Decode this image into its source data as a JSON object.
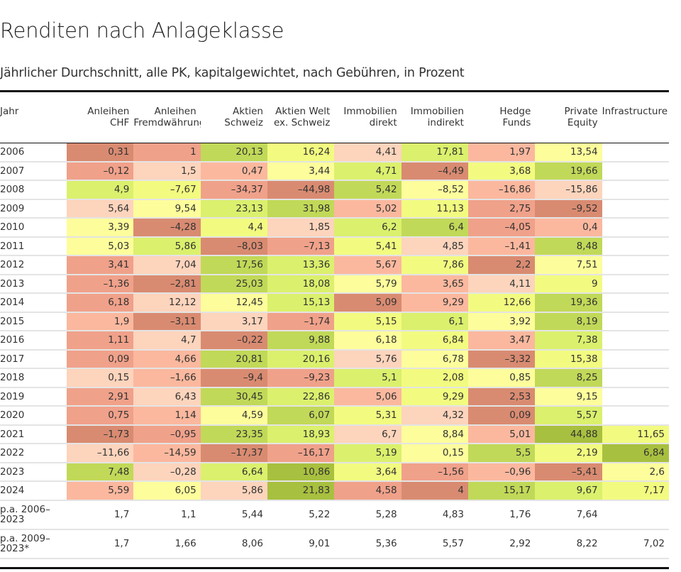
{
  "title": "Renditen nach Anlageklasse",
  "subtitle": "Jährlicher Durchschnitt, alle PK, kapitalgewichtet, nach Gebühren, in Prozent",
  "chart_data": {
    "type": "heatmap",
    "color_rule": "per row, ranked from lowest (red) to highest (green)",
    "palette": [
      "#d98b71",
      "#f0a18a",
      "#fbb89e",
      "#fdd4bc",
      "#fdfd9c",
      "#f2fb80",
      "#dbf06d",
      "#c1d958",
      "#a8c03f"
    ],
    "columns": [
      {
        "label": [
          "Jahr"
        ]
      },
      {
        "label": [
          "Anleihen",
          "CHF"
        ]
      },
      {
        "label": [
          "Anleihen",
          "Fremdwährung"
        ]
      },
      {
        "label": [
          "Aktien",
          "Schweiz"
        ]
      },
      {
        "label": [
          "Aktien Welt",
          "ex. Schweiz"
        ]
      },
      {
        "label": [
          "Immobilien",
          "direkt"
        ]
      },
      {
        "label": [
          "Immobilien",
          "indirekt"
        ]
      },
      {
        "label": [
          "Hedge",
          "Funds"
        ]
      },
      {
        "label": [
          "Private",
          "Equity"
        ]
      },
      {
        "label": [
          "Infrastructure"
        ]
      }
    ],
    "rows": [
      {
        "year": "2006",
        "values": [
          "0,31",
          "1",
          "20,13",
          "16,24",
          "4,41",
          "17,81",
          "1,97",
          "13,54",
          ""
        ]
      },
      {
        "year": "2007",
        "values": [
          "–0,12",
          "1,5",
          "0,47",
          "3,44",
          "4,71",
          "–4,49",
          "3,68",
          "19,66",
          ""
        ]
      },
      {
        "year": "2008",
        "values": [
          "4,9",
          "–7,67",
          "–34,37",
          "–44,98",
          "5,42",
          "–8,52",
          "–16,86",
          "–15,86",
          ""
        ]
      },
      {
        "year": "2009",
        "values": [
          "5,64",
          "9,54",
          "23,13",
          "31,98",
          "5,02",
          "11,13",
          "2,75",
          "–9,52",
          ""
        ]
      },
      {
        "year": "2010",
        "values": [
          "3,39",
          "–4,28",
          "4,4",
          "1,85",
          "6,2",
          "6,4",
          "–4,05",
          "0,4",
          ""
        ]
      },
      {
        "year": "2011",
        "values": [
          "5,03",
          "5,86",
          "–8,03",
          "–7,13",
          "5,41",
          "4,85",
          "–1,41",
          "8,48",
          ""
        ]
      },
      {
        "year": "2012",
        "values": [
          "3,41",
          "7,04",
          "17,56",
          "13,36",
          "5,67",
          "7,86",
          "2,2",
          "7,51",
          ""
        ]
      },
      {
        "year": "2013",
        "values": [
          "–1,36",
          "–2,81",
          "25,03",
          "18,08",
          "5,79",
          "3,65",
          "4,11",
          "9",
          ""
        ]
      },
      {
        "year": "2014",
        "values": [
          "6,18",
          "12,12",
          "12,45",
          "15,13",
          "5,09",
          "9,29",
          "12,66",
          "19,36",
          ""
        ]
      },
      {
        "year": "2015",
        "values": [
          "1,9",
          "–3,11",
          "3,17",
          "–1,74",
          "5,15",
          "6,1",
          "3,92",
          "8,19",
          ""
        ]
      },
      {
        "year": "2016",
        "values": [
          "1,11",
          "4,7",
          "–0,22",
          "9,88",
          "6,18",
          "6,84",
          "3,47",
          "7,38",
          ""
        ]
      },
      {
        "year": "2017",
        "values": [
          "0,09",
          "4,66",
          "20,81",
          "20,16",
          "5,76",
          "6,78",
          "–3,32",
          "15,38",
          ""
        ]
      },
      {
        "year": "2018",
        "values": [
          "0,15",
          "–1,66",
          "–9,4",
          "–9,23",
          "5,1",
          "2,08",
          "0,85",
          "8,25",
          ""
        ]
      },
      {
        "year": "2019",
        "values": [
          "2,91",
          "6,43",
          "30,45",
          "22,86",
          "5,06",
          "9,29",
          "2,53",
          "9,15",
          ""
        ]
      },
      {
        "year": "2020",
        "values": [
          "0,75",
          "1,14",
          "4,59",
          "6,07",
          "5,31",
          "4,32",
          "0,09",
          "5,57",
          ""
        ]
      },
      {
        "year": "2021",
        "values": [
          "–1,73",
          "–0,95",
          "23,35",
          "18,93",
          "6,7",
          "8,84",
          "5,01",
          "44,88",
          "11,65"
        ]
      },
      {
        "year": "2022",
        "values": [
          "–11,66",
          "–14,59",
          "–17,37",
          "–16,17",
          "5,19",
          "0,15",
          "5,5",
          "2,19",
          "6,84"
        ]
      },
      {
        "year": "2023",
        "values": [
          "7,48",
          "–0,28",
          "6,64",
          "10,86",
          "3,64",
          "–1,56",
          "–0,96",
          "–5,41",
          "2,6"
        ]
      },
      {
        "year": "2024",
        "values": [
          "5,59",
          "6,05",
          "5,86",
          "21,83",
          "4,58",
          "4",
          "15,17",
          "9,67",
          "7,17"
        ]
      }
    ],
    "summary_rows": [
      {
        "label": [
          "p.a. 2006–",
          "2023"
        ],
        "values": [
          "1,7",
          "1,1",
          "5,44",
          "5,22",
          "5,28",
          "4,83",
          "1,76",
          "7,64",
          ""
        ]
      },
      {
        "label": [
          "p.a. 2009–",
          "2023*"
        ],
        "values": [
          "1,7",
          "1,66",
          "8,06",
          "9,01",
          "5,36",
          "5,57",
          "2,92",
          "8,22",
          "7,02"
        ]
      }
    ]
  }
}
